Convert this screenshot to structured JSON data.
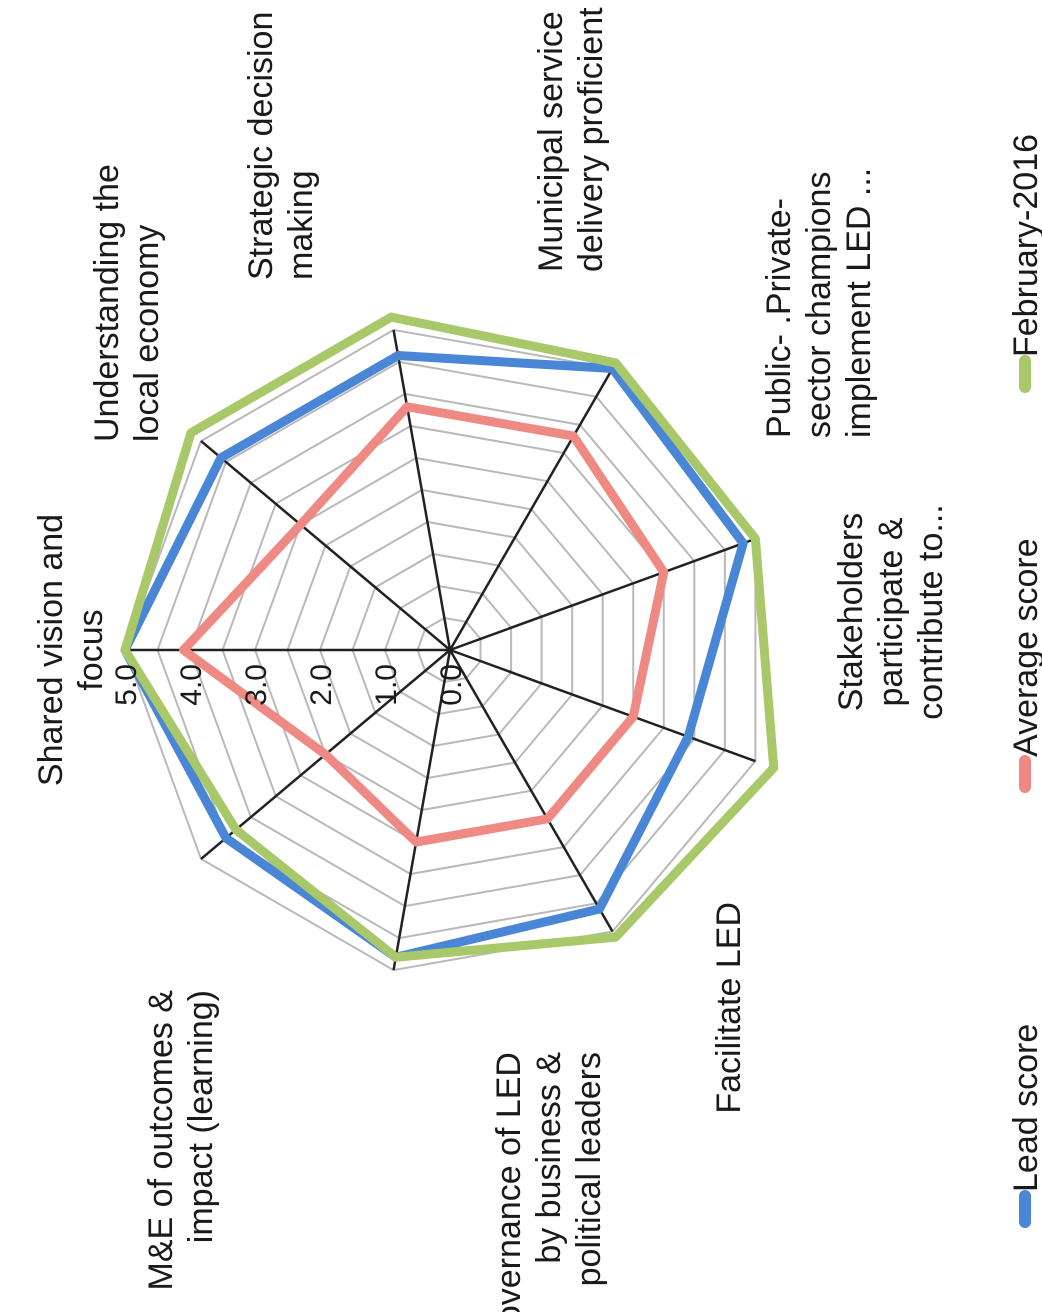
{
  "chart_data": {
    "type": "radar",
    "rotation": "chart rotated 90 degrees counter-clockwise",
    "categories": [
      [
        "Shared vision and",
        "focus"
      ],
      [
        "Understanding the",
        "local economy"
      ],
      [
        "Strategic decision",
        "making"
      ],
      [
        "Municipal service",
        "delivery proficient"
      ],
      [
        "Public- .Private-",
        "sector champions",
        "implement LED ..."
      ],
      [
        "Stakeholders",
        "participate &",
        "contribute to..."
      ],
      [
        "Facilitate LED"
      ],
      [
        "Governance of LED",
        "by business &",
        "political leaders"
      ],
      [
        "M&E of outcomes &",
        "impact (learning)"
      ]
    ],
    "ticks": [
      "0.0",
      "1.0",
      "2.0",
      "3.0",
      "4.0",
      "5.0"
    ],
    "range": [
      0,
      5
    ],
    "grid": true,
    "legend_position": "bottom",
    "series": [
      {
        "name": "Lead score",
        "color": "#4a86d6",
        "values": [
          5.0,
          4.6,
          4.6,
          5.0,
          4.8,
          3.9,
          4.6,
          4.8,
          4.5
        ]
      },
      {
        "name": "Average score",
        "color": "#ee8a83",
        "values": [
          4.1,
          3.0,
          3.8,
          3.8,
          3.5,
          3.0,
          3.0,
          3.0,
          2.5
        ]
      },
      {
        "name": "February-2016",
        "color": "#a8c86a",
        "values": [
          5.0,
          5.2,
          5.2,
          5.1,
          5.0,
          5.3,
          5.1,
          4.8,
          4.3
        ]
      }
    ]
  }
}
